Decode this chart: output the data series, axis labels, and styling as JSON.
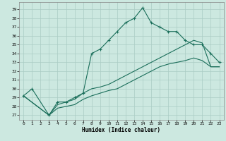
{
  "xlabel": "Humidex (Indice chaleur)",
  "bg_color": "#cce8e0",
  "grid_color": "#aaccC4",
  "line_color": "#1a6e5a",
  "xlim": [
    -0.5,
    23.5
  ],
  "ylim": [
    26.5,
    39.8
  ],
  "xticks": [
    0,
    1,
    2,
    3,
    4,
    5,
    6,
    7,
    8,
    9,
    10,
    11,
    12,
    13,
    14,
    15,
    16,
    17,
    18,
    19,
    20,
    21,
    22,
    23
  ],
  "yticks": [
    27,
    28,
    29,
    30,
    31,
    32,
    33,
    34,
    35,
    36,
    37,
    38,
    39
  ],
  "line1_x": [
    0,
    1,
    3,
    4,
    5,
    6,
    7,
    8,
    9,
    10,
    11,
    12,
    13,
    14,
    15,
    16,
    17,
    18,
    19,
    20,
    21,
    22,
    23
  ],
  "line1_y": [
    29.2,
    30.0,
    27.0,
    28.5,
    28.5,
    29.0,
    29.5,
    34.0,
    34.5,
    35.5,
    36.5,
    37.5,
    38.0,
    39.2,
    37.5,
    37.0,
    36.5,
    36.5,
    35.5,
    35.0,
    35.0,
    34.0,
    33.0
  ],
  "line2_x": [
    0,
    3,
    4,
    5,
    6,
    7,
    8,
    9,
    10,
    11,
    12,
    13,
    14,
    15,
    16,
    17,
    18,
    19,
    20,
    21,
    22,
    23
  ],
  "line2_y": [
    29.2,
    27.0,
    28.2,
    28.5,
    28.8,
    29.5,
    30.0,
    30.2,
    30.5,
    31.0,
    31.5,
    32.0,
    32.5,
    33.0,
    33.5,
    34.0,
    34.5,
    35.0,
    35.5,
    35.2,
    32.5,
    32.5
  ],
  "line3_x": [
    0,
    3,
    4,
    5,
    6,
    7,
    8,
    9,
    10,
    11,
    12,
    13,
    14,
    15,
    16,
    17,
    18,
    19,
    20,
    21,
    22,
    23
  ],
  "line3_y": [
    29.2,
    27.0,
    27.8,
    28.0,
    28.2,
    28.8,
    29.2,
    29.5,
    29.8,
    30.0,
    30.5,
    31.0,
    31.5,
    32.0,
    32.5,
    32.8,
    33.0,
    33.2,
    33.5,
    33.2,
    32.5,
    32.5
  ]
}
